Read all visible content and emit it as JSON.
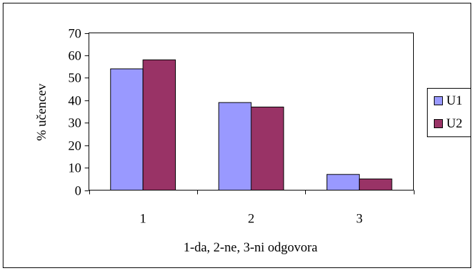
{
  "chart_data": {
    "type": "bar",
    "categories": [
      "1",
      "2",
      "3"
    ],
    "series": [
      {
        "name": "U1",
        "values": [
          54,
          39,
          7
        ],
        "color": "#9999ff"
      },
      {
        "name": "U2",
        "values": [
          58,
          37,
          5
        ],
        "color": "#993366"
      }
    ],
    "xlabel": "1-da, 2-ne, 3-ni odgovora",
    "ylabel": "% učencev",
    "ylim": [
      0,
      70
    ],
    "yticks": [
      0,
      10,
      20,
      30,
      40,
      50,
      60,
      70
    ],
    "grid": false,
    "legend": "right"
  }
}
